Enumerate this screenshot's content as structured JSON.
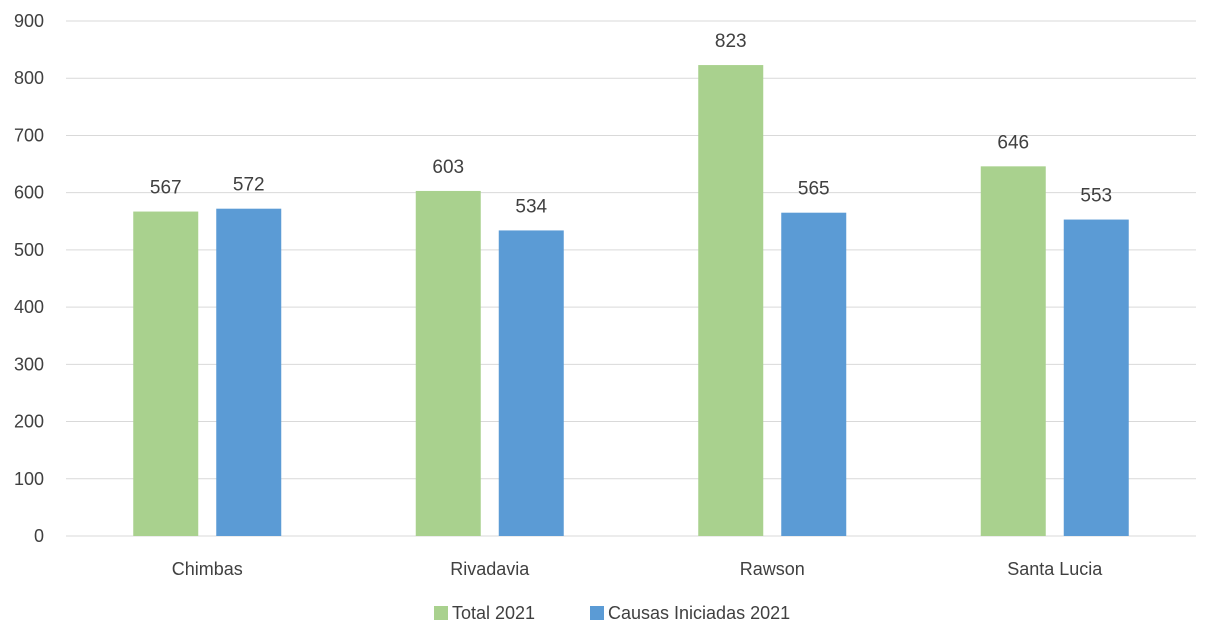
{
  "chart_data": {
    "type": "bar",
    "title": "",
    "xlabel": "",
    "ylabel": "",
    "ylim": [
      0,
      900
    ],
    "yticks": [
      0,
      100,
      200,
      300,
      400,
      500,
      600,
      700,
      800,
      900
    ],
    "grid": true,
    "legend_position": "bottom",
    "categories": [
      "Chimbas",
      "Rivadavia",
      "Rawson",
      "Santa Lucia"
    ],
    "series": [
      {
        "name": "Total 2021",
        "color": "#a9d18e",
        "values": [
          567,
          603,
          823,
          646
        ]
      },
      {
        "name": "Causas Iniciadas 2021",
        "color": "#5b9bd5",
        "values": [
          572,
          534,
          565,
          553
        ]
      }
    ]
  }
}
